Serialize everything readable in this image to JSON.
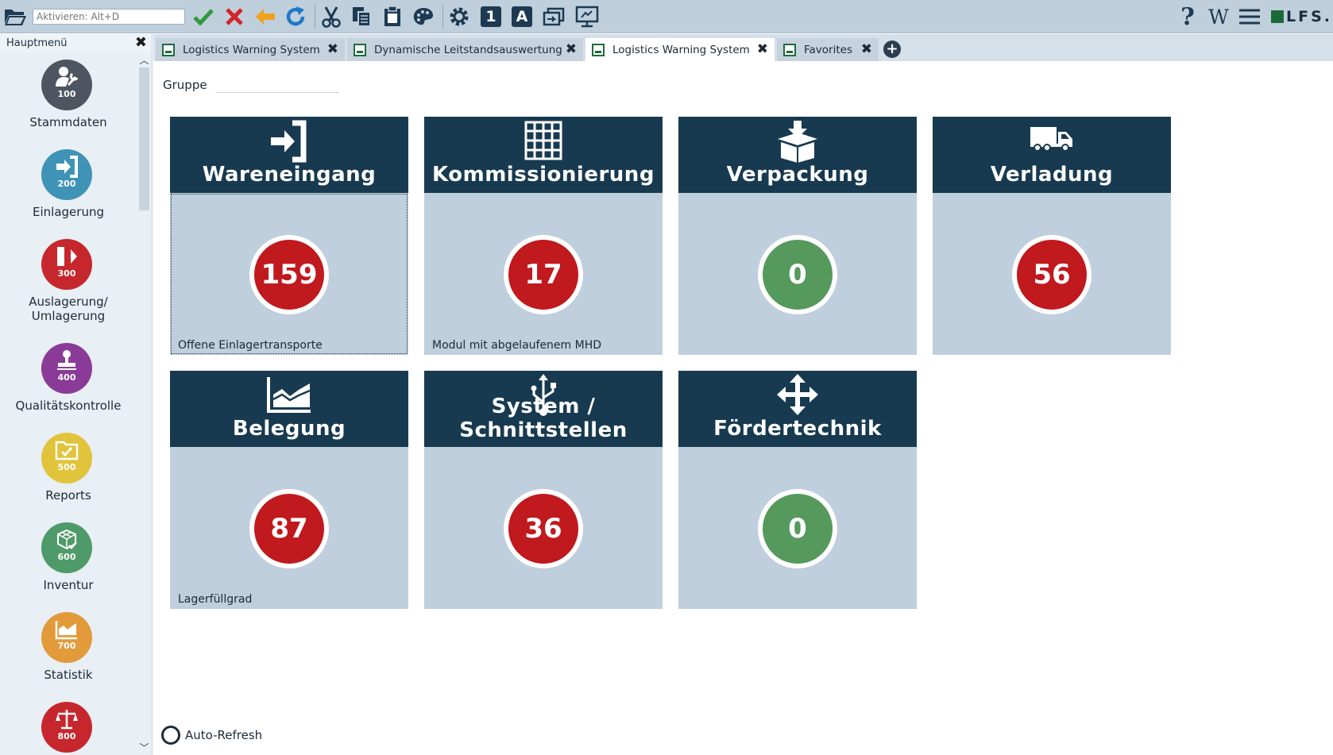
{
  "toolbar": {
    "search_placeholder": "Aktivieren: Alt+D",
    "logo_text": "LFS.",
    "buttons": [
      "folder-open",
      "confirm",
      "cancel",
      "back",
      "refresh",
      "cut",
      "copy",
      "paste",
      "palette",
      "settings",
      "one",
      "letter-a",
      "window-switch",
      "remote-screen",
      "help",
      "wiki",
      "menu"
    ],
    "one_label": "1",
    "a_label": "A",
    "wiki_label": "W",
    "help_label": "?"
  },
  "sidebar": {
    "title": "Hauptmenü",
    "items": [
      {
        "num": "100",
        "label": "Stammdaten",
        "color": "#4d5560",
        "icon": "user-wrench-icon"
      },
      {
        "num": "200",
        "label": "Einlagerung",
        "color": "#3f93b6",
        "icon": "sign-in-icon"
      },
      {
        "num": "300",
        "label": "Auslagerung/\nUmlagerung",
        "color": "#c6272c",
        "icon": "sign-out-icon"
      },
      {
        "num": "400",
        "label": "Qualitätskontrolle",
        "color": "#8a3b98",
        "icon": "stamp-icon"
      },
      {
        "num": "500",
        "label": "Reports",
        "color": "#e1c43b",
        "icon": "folder-check-icon"
      },
      {
        "num": "600",
        "label": "Inventur",
        "color": "#4f9a69",
        "icon": "boxes-check-icon"
      },
      {
        "num": "700",
        "label": "Statistik",
        "color": "#e29a3b",
        "icon": "area-chart-icon"
      },
      {
        "num": "800",
        "label": "",
        "color": "#c6272c",
        "icon": "scale-icon"
      }
    ]
  },
  "tabs": [
    {
      "label": "Logistics Warning System",
      "active": false
    },
    {
      "label": "Dynamische Leitstandsauswertung",
      "active": false
    },
    {
      "label": "Logistics Warning System",
      "active": true
    },
    {
      "label": "Favorites",
      "active": false
    }
  ],
  "content": {
    "gruppe_label": "Gruppe",
    "gruppe_value": "",
    "autorefresh_label": "Auto-Refresh",
    "tiles": [
      {
        "title": "Wareneingang",
        "value": "159",
        "status": "red",
        "subtitle": "Offene Einlagertransporte",
        "icon": "sign-in-icon"
      },
      {
        "title": "Kommissionierung",
        "value": "17",
        "status": "red",
        "subtitle": "Modul mit abgelaufenem MHD",
        "icon": "shelves-icon"
      },
      {
        "title": "Verpackung",
        "value": "0",
        "status": "green",
        "subtitle": "",
        "icon": "package-icon"
      },
      {
        "title": "Verladung",
        "value": "56",
        "status": "red",
        "subtitle": "",
        "icon": "truck-icon"
      },
      {
        "title": "Belegung",
        "value": "87",
        "status": "red",
        "subtitle": "Lagerfüllgrad",
        "icon": "area-chart-icon"
      },
      {
        "title_line1": "System /",
        "title_line2": "Schnittstellen",
        "value": "36",
        "status": "red",
        "subtitle": "",
        "icon": "usb-icon"
      },
      {
        "title": "Fördertechnik",
        "value": "0",
        "status": "green",
        "subtitle": "",
        "icon": "move-arrows-icon"
      }
    ]
  },
  "colors": {
    "red": "#c0191e",
    "green": "#559a5c",
    "tile_head": "#173a50",
    "tile_body": "#bfcfdd"
  }
}
